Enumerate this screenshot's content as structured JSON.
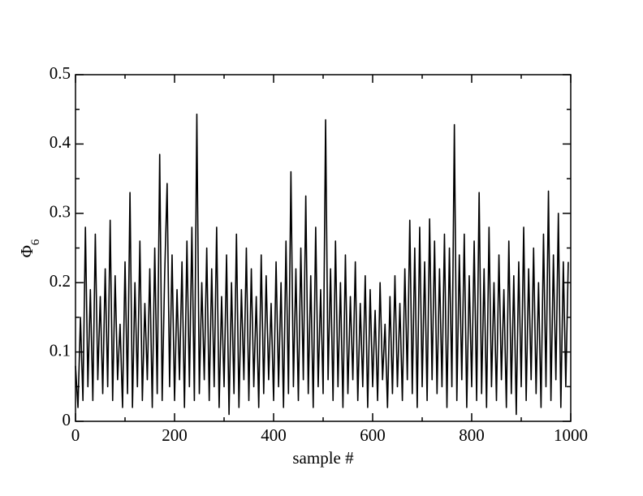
{
  "chart_data": {
    "type": "line",
    "xlabel": "sample #",
    "ylabel": "Φ",
    "ylabel_subscript": "6",
    "xlim": [
      0,
      1000
    ],
    "xticks": [
      0,
      200,
      400,
      600,
      800,
      1000
    ],
    "xminor_ticks": [
      100,
      300,
      500,
      700,
      900
    ],
    "ylim": [
      0,
      0.5
    ],
    "yticks": [
      0,
      0.1,
      0.2,
      0.3,
      0.4,
      0.5
    ],
    "yminor_ticks": [
      0.05,
      0.15,
      0.25,
      0.35,
      0.45
    ],
    "color": "#000000",
    "x": [
      0,
      5,
      10,
      15,
      20,
      25,
      30,
      35,
      40,
      45,
      50,
      55,
      60,
      65,
      70,
      75,
      80,
      85,
      90,
      95,
      100,
      105,
      110,
      115,
      120,
      125,
      130,
      135,
      140,
      145,
      150,
      155,
      160,
      165,
      170,
      175,
      180,
      185,
      190,
      195,
      200,
      205,
      210,
      215,
      220,
      225,
      230,
      235,
      240,
      245,
      250,
      255,
      260,
      265,
      270,
      275,
      280,
      285,
      290,
      295,
      300,
      305,
      310,
      315,
      320,
      325,
      330,
      335,
      340,
      345,
      350,
      355,
      360,
      365,
      370,
      375,
      380,
      385,
      390,
      395,
      400,
      405,
      410,
      415,
      420,
      425,
      430,
      435,
      440,
      445,
      450,
      455,
      460,
      465,
      470,
      475,
      480,
      485,
      490,
      495,
      500,
      505,
      510,
      515,
      520,
      525,
      530,
      535,
      540,
      545,
      550,
      555,
      560,
      565,
      570,
      575,
      580,
      585,
      590,
      595,
      600,
      605,
      610,
      615,
      620,
      625,
      630,
      635,
      640,
      645,
      650,
      655,
      660,
      665,
      670,
      675,
      680,
      685,
      690,
      695,
      700,
      705,
      710,
      715,
      720,
      725,
      730,
      735,
      740,
      745,
      750,
      755,
      760,
      765,
      770,
      775,
      780,
      785,
      790,
      795,
      800,
      805,
      810,
      815,
      820,
      825,
      830,
      835,
      840,
      845,
      850,
      855,
      860,
      865,
      870,
      875,
      880,
      885,
      890,
      895,
      900,
      905,
      910,
      915,
      920,
      925,
      930,
      935,
      940,
      945,
      950,
      955,
      960,
      965,
      970,
      975,
      980,
      985,
      990,
      995
    ],
    "values": [
      0.08,
      0.02,
      0.15,
      0.03,
      0.28,
      0.05,
      0.19,
      0.03,
      0.27,
      0.06,
      0.18,
      0.04,
      0.22,
      0.05,
      0.29,
      0.03,
      0.21,
      0.06,
      0.14,
      0.02,
      0.23,
      0.04,
      0.33,
      0.02,
      0.2,
      0.05,
      0.26,
      0.03,
      0.17,
      0.06,
      0.22,
      0.02,
      0.25,
      0.04,
      0.385,
      0.03,
      0.21,
      0.343,
      0.05,
      0.24,
      0.03,
      0.19,
      0.06,
      0.23,
      0.02,
      0.26,
      0.05,
      0.28,
      0.03,
      0.443,
      0.04,
      0.2,
      0.06,
      0.25,
      0.03,
      0.22,
      0.05,
      0.28,
      0.02,
      0.18,
      0.05,
      0.24,
      0.01,
      0.2,
      0.04,
      0.27,
      0.02,
      0.19,
      0.06,
      0.25,
      0.03,
      0.22,
      0.05,
      0.18,
      0.02,
      0.24,
      0.04,
      0.21,
      0.06,
      0.17,
      0.03,
      0.23,
      0.05,
      0.2,
      0.02,
      0.26,
      0.04,
      0.36,
      0.05,
      0.22,
      0.03,
      0.25,
      0.06,
      0.325,
      0.04,
      0.21,
      0.02,
      0.28,
      0.05,
      0.19,
      0.04,
      0.435,
      0.06,
      0.22,
      0.03,
      0.26,
      0.05,
      0.2,
      0.02,
      0.24,
      0.04,
      0.18,
      0.06,
      0.23,
      0.03,
      0.17,
      0.05,
      0.21,
      0.02,
      0.19,
      0.05,
      0.16,
      0.03,
      0.2,
      0.06,
      0.14,
      0.02,
      0.18,
      0.04,
      0.21,
      0.05,
      0.17,
      0.03,
      0.22,
      0.06,
      0.29,
      0.04,
      0.25,
      0.02,
      0.28,
      0.05,
      0.23,
      0.03,
      0.292,
      0.06,
      0.26,
      0.04,
      0.22,
      0.05,
      0.27,
      0.02,
      0.25,
      0.05,
      0.428,
      0.03,
      0.24,
      0.06,
      0.27,
      0.02,
      0.21,
      0.05,
      0.26,
      0.03,
      0.33,
      0.04,
      0.22,
      0.02,
      0.28,
      0.05,
      0.2,
      0.03,
      0.24,
      0.06,
      0.19,
      0.02,
      0.26,
      0.04,
      0.21,
      0.01,
      0.23,
      0.05,
      0.28,
      0.03,
      0.22,
      0.06,
      0.25,
      0.04,
      0.2,
      0.02,
      0.27,
      0.05,
      0.332,
      0.03,
      0.24,
      0.06,
      0.3,
      0.02,
      0.23,
      0.05,
      0.23
    ]
  }
}
